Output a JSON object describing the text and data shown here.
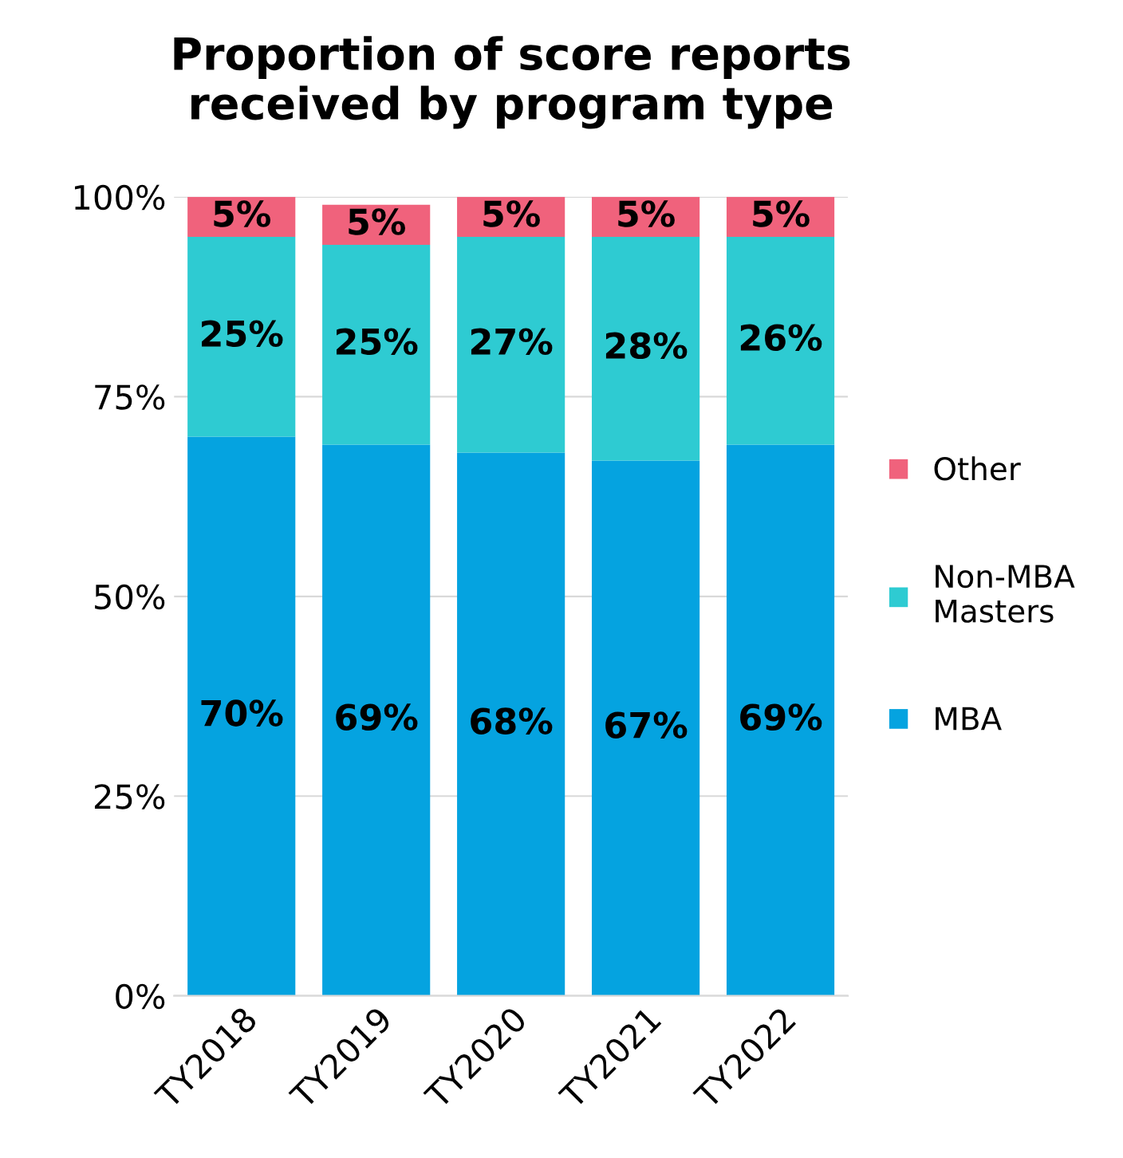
{
  "chart_data": {
    "type": "bar",
    "title": "Proportion of score reports\nreceived by program type",
    "categories": [
      "TY2018",
      "TY2019",
      "TY2020",
      "TY2021",
      "TY2022"
    ],
    "stacked": true,
    "series": [
      {
        "name": "MBA",
        "color": "#05a3e0",
        "values": [
          70,
          69,
          68,
          67,
          69
        ],
        "value_labels": [
          "70%",
          "69%",
          "68%",
          "67%",
          "69%"
        ]
      },
      {
        "name": "Non-MBA\nMasters",
        "color": "#2ecbd2",
        "values": [
          25,
          25,
          27,
          28,
          26
        ],
        "value_labels": [
          "25%",
          "25%",
          "27%",
          "28%",
          "26%"
        ]
      },
      {
        "name": "Other",
        "color": "#f0627c",
        "values": [
          5,
          5,
          5,
          5,
          5
        ],
        "value_labels": [
          "5%",
          "5%",
          "5%",
          "5%",
          "5%"
        ]
      }
    ],
    "ylim": [
      0,
      100
    ],
    "yticks": [
      {
        "value": 0,
        "label": "0%"
      },
      {
        "value": 25,
        "label": "25%"
      },
      {
        "value": 50,
        "label": "50%"
      },
      {
        "value": 75,
        "label": "75%"
      },
      {
        "value": 100,
        "label": "100%"
      }
    ],
    "grid": "y",
    "legend": "right"
  }
}
